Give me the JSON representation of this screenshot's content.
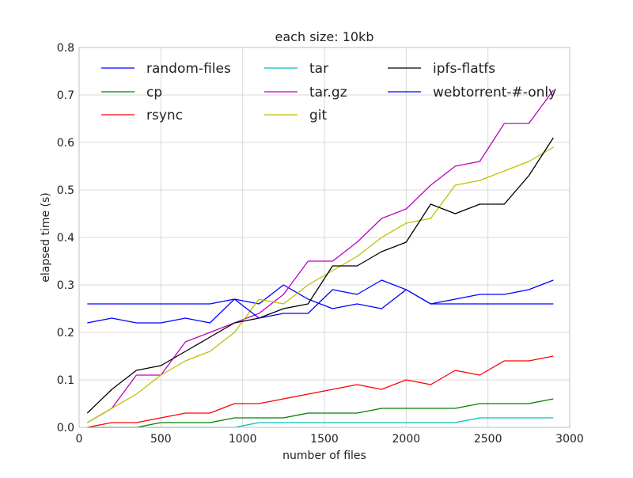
{
  "chart_data": {
    "type": "line",
    "title": "each size: 10kb",
    "xlabel": "number of files",
    "ylabel": "elapsed time (s)",
    "xlim": [
      0,
      3000
    ],
    "ylim": [
      0,
      0.8
    ],
    "xticks": [
      0,
      500,
      1000,
      1500,
      2000,
      2500,
      3000
    ],
    "yticks": [
      0.0,
      0.1,
      0.2,
      0.3,
      0.4,
      0.5,
      0.6,
      0.7,
      0.8
    ],
    "xtick_labels": [
      "0",
      "500",
      "1000",
      "1500",
      "2000",
      "2500",
      "3000"
    ],
    "ytick_labels": [
      "0.0",
      "0.1",
      "0.2",
      "0.3",
      "0.4",
      "0.5",
      "0.6",
      "0.7",
      "0.8"
    ],
    "grid": true,
    "legend_position": "top-left",
    "legend_columns": 3,
    "x": [
      50,
      200,
      350,
      500,
      650,
      800,
      950,
      1100,
      1250,
      1400,
      1550,
      1700,
      1850,
      2000,
      2150,
      2300,
      2450,
      2600,
      2750,
      2900
    ],
    "series": [
      {
        "name": "random-files",
        "color": "#0000ff",
        "values": [
          0.22,
          0.23,
          0.22,
          0.22,
          0.23,
          0.22,
          0.27,
          0.26,
          0.3,
          0.27,
          0.25,
          0.26,
          0.25,
          0.29,
          0.26,
          0.27,
          0.28,
          0.28,
          0.29,
          0.31
        ]
      },
      {
        "name": "cp",
        "color": "#008000",
        "values": [
          0.0,
          0.0,
          0.0,
          0.01,
          0.01,
          0.01,
          0.02,
          0.02,
          0.02,
          0.03,
          0.03,
          0.03,
          0.04,
          0.04,
          0.04,
          0.04,
          0.05,
          0.05,
          0.05,
          0.06
        ]
      },
      {
        "name": "rsync",
        "color": "#ff0000",
        "values": [
          0.0,
          0.01,
          0.01,
          0.02,
          0.03,
          0.03,
          0.05,
          0.05,
          0.06,
          0.07,
          0.08,
          0.09,
          0.08,
          0.1,
          0.09,
          0.12,
          0.11,
          0.14,
          0.14,
          0.15
        ]
      },
      {
        "name": "tar",
        "color": "#00bfbf",
        "values": [
          0.0,
          0.0,
          0.0,
          0.0,
          0.0,
          0.0,
          0.0,
          0.01,
          0.01,
          0.01,
          0.01,
          0.01,
          0.01,
          0.01,
          0.01,
          0.01,
          0.02,
          0.02,
          0.02,
          0.02
        ]
      },
      {
        "name": "tar.gz",
        "color": "#bf00bf",
        "values": [
          0.01,
          0.04,
          0.11,
          0.11,
          0.18,
          0.2,
          0.22,
          0.24,
          0.28,
          0.35,
          0.35,
          0.39,
          0.44,
          0.46,
          0.51,
          0.55,
          0.56,
          0.64,
          0.64,
          0.71
        ]
      },
      {
        "name": "git",
        "color": "#bfbf00",
        "values": [
          0.01,
          0.04,
          0.07,
          0.11,
          0.14,
          0.16,
          0.2,
          0.27,
          0.26,
          0.3,
          0.33,
          0.36,
          0.4,
          0.43,
          0.44,
          0.51,
          0.52,
          0.54,
          0.56,
          0.59
        ]
      },
      {
        "name": "ipfs-flatfs",
        "color": "#000000",
        "values": [
          0.03,
          0.08,
          0.12,
          0.13,
          0.16,
          0.19,
          0.22,
          0.23,
          0.25,
          0.26,
          0.34,
          0.34,
          0.37,
          0.39,
          0.47,
          0.45,
          0.47,
          0.47,
          0.53,
          0.61
        ]
      },
      {
        "name": "webtorrent-#-only",
        "color": "#0000ff",
        "values": [
          0.26,
          0.26,
          0.26,
          0.26,
          0.26,
          0.26,
          0.27,
          0.23,
          0.24,
          0.24,
          0.29,
          0.28,
          0.31,
          0.29,
          0.26,
          0.26,
          0.26,
          0.26,
          0.26,
          0.26
        ]
      }
    ]
  }
}
